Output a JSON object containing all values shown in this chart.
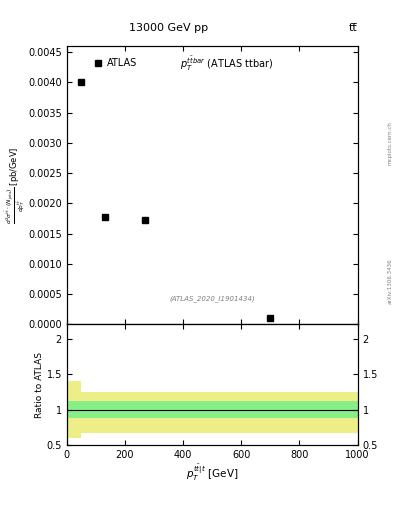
{
  "title_top": "13000 GeV pp",
  "title_right": "tt̅",
  "main_annotation": "p_T^{ttbar} (ATLAS ttbar)",
  "legend_label": "ATLAS",
  "watermark": "(ATLAS_2020_I1901434)",
  "ylabel_main": "d^{2}sigma cdot N_{jets} / dp_T [pb/GeV]",
  "ratio_ylabel": "Ratio to ATLAS",
  "ratio_xlabel": "p^{tbar|t}_T [GeV]",
  "data_x": [
    50,
    130,
    270,
    700
  ],
  "data_y": [
    0.004,
    0.00177,
    0.00172,
    0.0001
  ],
  "ylim_main": [
    0,
    0.0046
  ],
  "xlim": [
    0,
    1000
  ],
  "ratio_ylim": [
    0.5,
    2.2
  ],
  "green_color": "#88EE88",
  "yellow_color": "#EEEE88",
  "bg_color": "#ffffff",
  "data_color": "#000000",
  "marker_size": 5,
  "arxiv_text": "arXiv:1306.3436",
  "mcplots_text": "mcplots.cern.ch",
  "band_x1": [
    0,
    50,
    50,
    180,
    180,
    1000
  ],
  "yellow_upper": [
    1.4,
    1.4,
    1.25,
    1.25,
    1.25,
    1.25
  ],
  "yellow_lower": [
    0.6,
    0.6,
    0.67,
    0.67,
    0.67,
    0.67
  ],
  "green_upper": [
    1.12,
    1.12,
    1.12,
    1.12,
    1.12,
    1.12
  ],
  "green_lower": [
    0.88,
    0.88,
    0.88,
    0.88,
    0.88,
    0.88
  ]
}
